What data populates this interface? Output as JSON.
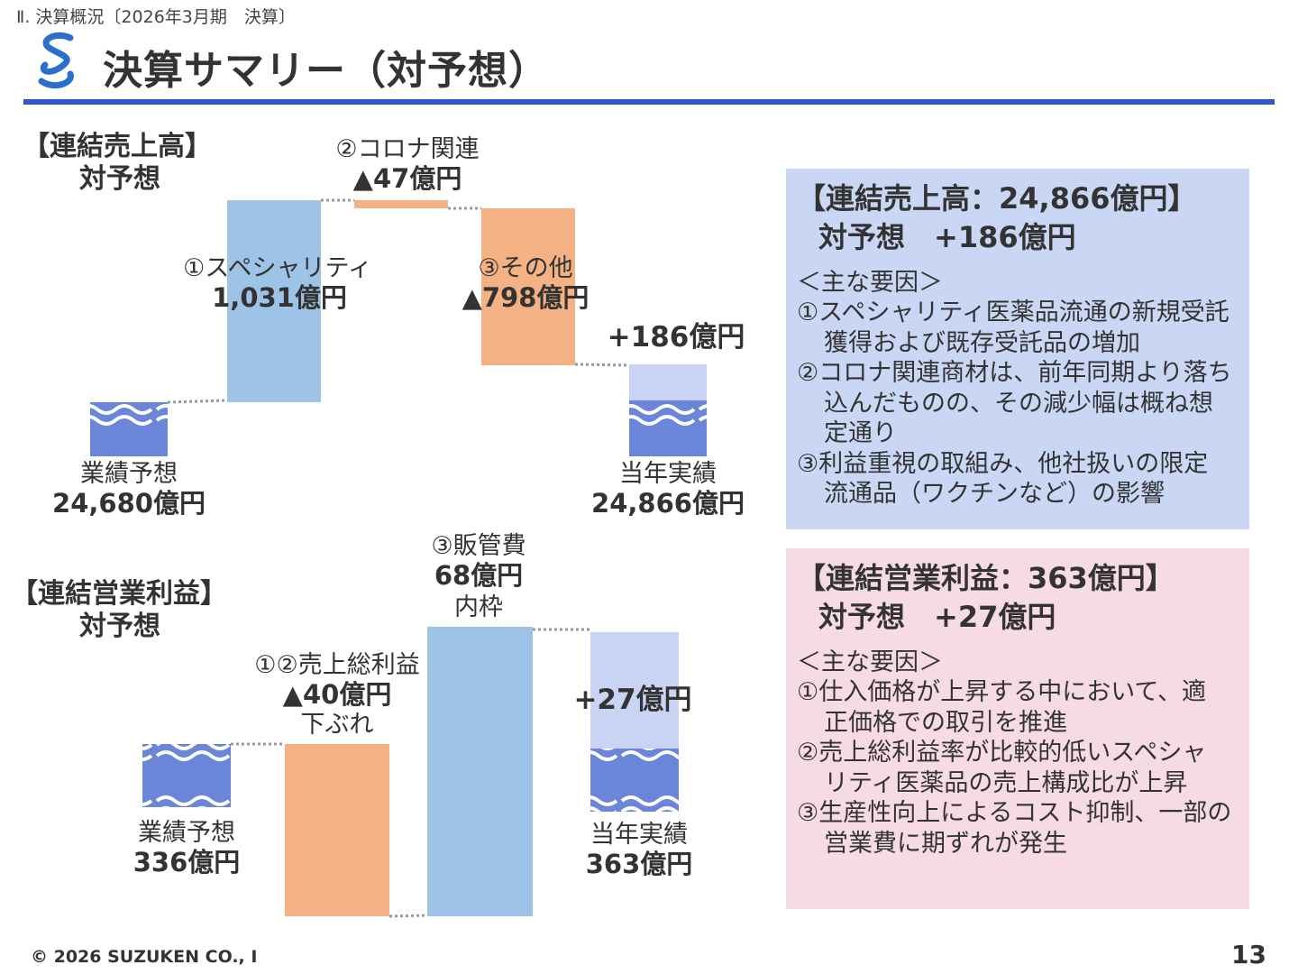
{
  "header": {
    "breadcrumb": "Ⅱ. 決算概況〔2026年3月期　決算〕",
    "title": "決算サマリー（対予想）"
  },
  "colors": {
    "accent": "#3355cc",
    "specialty_bar": "#9dc3e6",
    "negative_bar": "#f4b183",
    "base_bar": "#6b85d9",
    "diff_bar": "#c9d4f4"
  },
  "chart_data": [
    {
      "type": "bar",
      "subtype": "waterfall",
      "title": "【連結売上高】",
      "subtitle": "対予想",
      "unit": "億円",
      "categories": [
        "業績予想",
        "①スペシャリティ",
        "②コロナ関連",
        "③その他",
        "当年実績"
      ],
      "values": [
        24680,
        1031,
        -47,
        -798,
        24866
      ],
      "labels": {
        "forecast_name": "業績予想",
        "forecast_value": "24,680億円",
        "step1_name": "①スペシャリティ",
        "step1_value": "1,031億円",
        "step2_name": "②コロナ関連",
        "step2_value": "▲47億円",
        "step3_name": "③その他",
        "step3_value": "▲798億円",
        "diff": "+186億円",
        "actual_name": "当年実績",
        "actual_value": "24,866億円"
      }
    },
    {
      "type": "bar",
      "subtype": "waterfall",
      "title": "【連結営業利益】",
      "subtitle": "対予想",
      "unit": "億円",
      "categories": [
        "業績予想",
        "①②売上総利益",
        "③販管費",
        "当年実績"
      ],
      "values": [
        336,
        -40,
        68,
        363
      ],
      "labels": {
        "forecast_name": "業績予想",
        "forecast_value": "336億円",
        "step1_name": "①②売上総利益",
        "step1_value": "▲40億円",
        "step1_note": "下ぶれ",
        "step2_name": "③販管費",
        "step2_value": "68億円",
        "step2_note": "内枠",
        "diff": "+27億円",
        "actual_name": "当年実績",
        "actual_value": "363億円"
      }
    }
  ],
  "sales_box": {
    "heading": "【連結売上高：24,866億円】",
    "subheading": "対予想　+186億円",
    "factors_title": "＜主な要因＞",
    "lines": [
      {
        "text": "①スペシャリティ医薬品流通の新規受託",
        "cont": false
      },
      {
        "text": "獲得および既存受託品の増加",
        "cont": true
      },
      {
        "text": "②コロナ関連商材は、前年同期より落ち",
        "cont": false
      },
      {
        "text": "込んだものの、その減少幅は概ね想",
        "cont": true
      },
      {
        "text": "定通り",
        "cont": true
      },
      {
        "text": "③利益重視の取組み、他社扱いの限定",
        "cont": false
      },
      {
        "text": "流通品（ワクチンなど）の影響",
        "cont": true
      }
    ]
  },
  "op_box": {
    "heading": "【連結営業利益：363億円】",
    "subheading": "対予想　+27億円",
    "factors_title": "＜主な要因＞",
    "lines": [
      {
        "text": "①仕入価格が上昇する中において、適",
        "cont": false
      },
      {
        "text": "正価格での取引を推進",
        "cont": true
      },
      {
        "text": "②売上総利益率が比較的低いスペシャ",
        "cont": false
      },
      {
        "text": "リティ医薬品の売上構成比が上昇",
        "cont": true
      },
      {
        "text": "③生産性向上によるコスト抑制、一部の",
        "cont": false
      },
      {
        "text": "営業費に期ずれが発生",
        "cont": true
      }
    ]
  },
  "footer": {
    "copyright": "© 2026 SUZUKEN CO., I",
    "page_number": "13"
  }
}
